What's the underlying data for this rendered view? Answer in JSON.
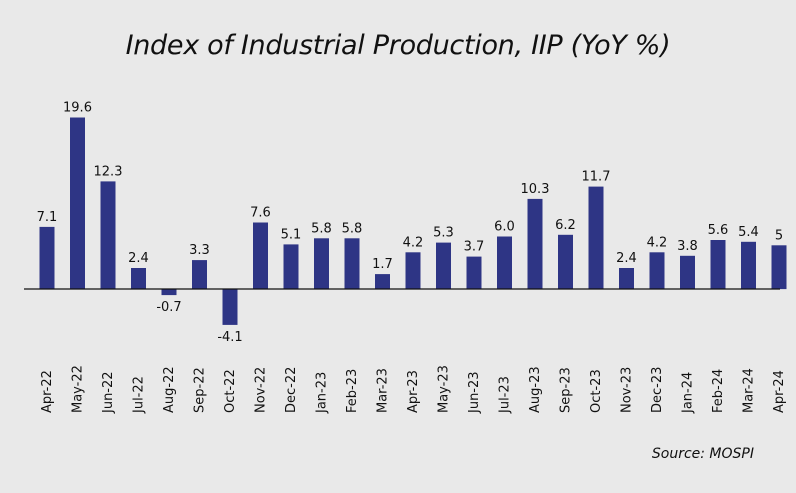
{
  "chart_data": {
    "type": "bar",
    "title": "Index of Industrial Production, IIP (YoY %)",
    "source": "Source: MOSPI",
    "categories": [
      "Apr-22",
      "May-22",
      "Jun-22",
      "Jul-22",
      "Aug-22",
      "Sep-22",
      "Oct-22",
      "Nov-22",
      "Dec-22",
      "Jan-23",
      "Feb-23",
      "Mar-23",
      "Apr-23",
      "May-23",
      "Jun-23",
      "Jul-23",
      "Aug-23",
      "Sep-23",
      "Oct-23",
      "Nov-23",
      "Dec-23",
      "Jan-24",
      "Feb-24",
      "Mar-24",
      "Apr-24"
    ],
    "values": [
      7.1,
      19.6,
      12.3,
      2.4,
      -0.7,
      3.3,
      -4.1,
      7.6,
      5.1,
      5.8,
      5.8,
      1.7,
      4.2,
      5.3,
      3.7,
      6.0,
      10.3,
      6.2,
      11.7,
      2.4,
      4.2,
      3.8,
      5.6,
      5.4,
      5
    ],
    "value_labels": [
      "7.1",
      "19.6",
      "12.3",
      "2.4",
      "-0.7",
      "3.3",
      "-4.1",
      "7.6",
      "5.1",
      "5.8",
      "5.8",
      "1.7",
      "4.2",
      "5.3",
      "3.7",
      "6.0",
      "10.3",
      "6.2",
      "11.7",
      "2.4",
      "4.2",
      "3.8",
      "5.6",
      "5.4",
      "5"
    ],
    "bar_color": "#2e3585",
    "xlabel": "",
    "ylabel": "",
    "grid": false,
    "legend": "none"
  }
}
